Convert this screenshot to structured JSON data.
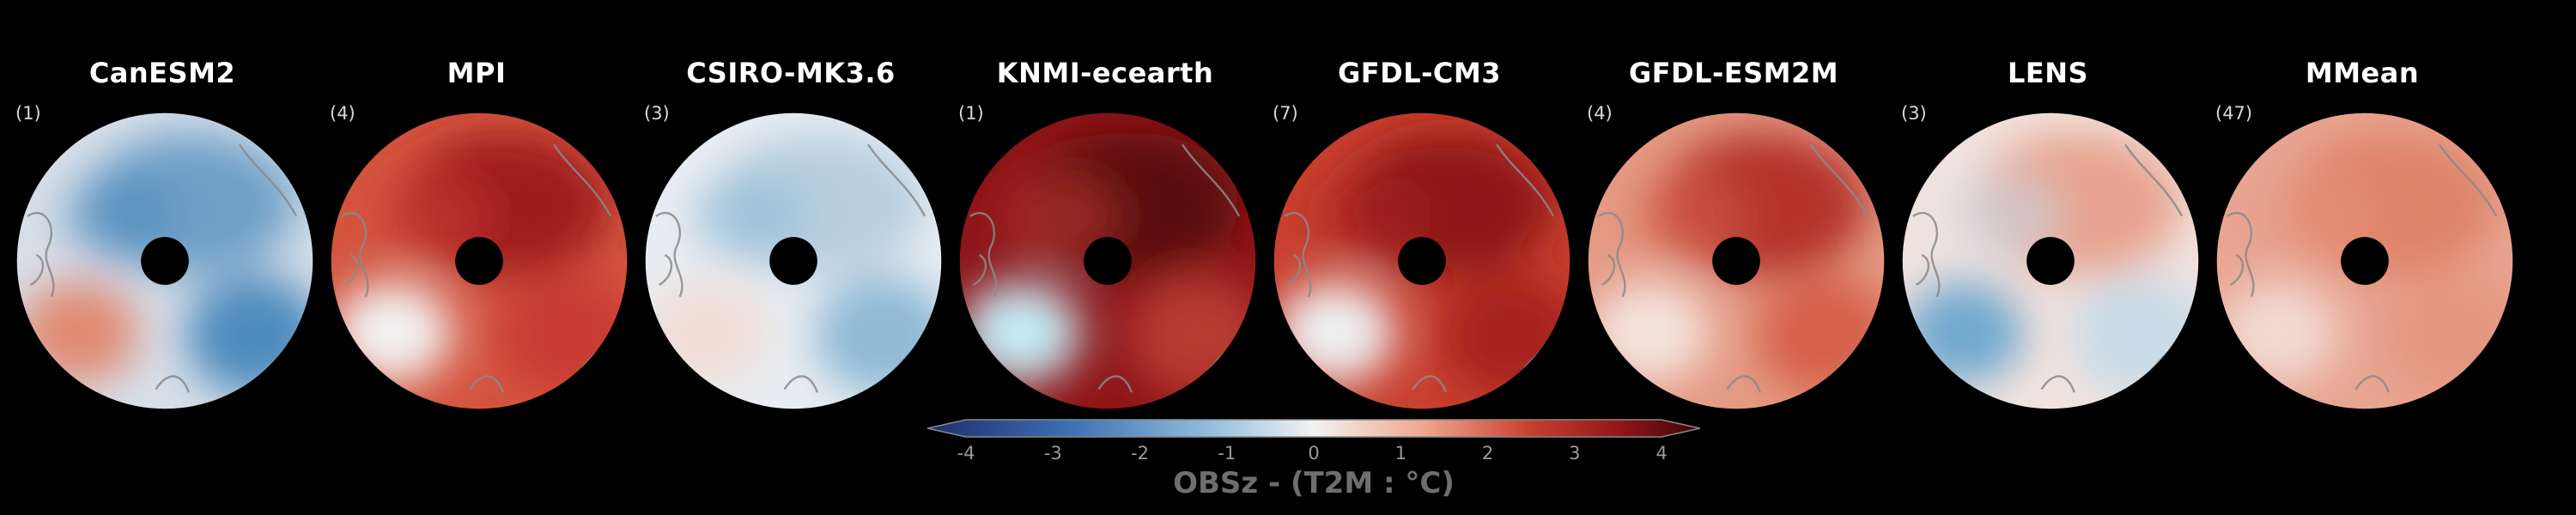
{
  "panels": [
    {
      "title": "CanESM2",
      "count": "(1)",
      "theme": {
        "bg": "#d7dfe8",
        "a": "#6fa0c8",
        "b": "#e08a72",
        "c": "#4d8bbd"
      }
    },
    {
      "title": "MPI",
      "count": "(4)",
      "theme": {
        "bg": "#d4553f",
        "a": "#9e1d1e",
        "b": "#f2f2f2",
        "c": "#c83a32"
      }
    },
    {
      "title": "CSIRO-MK3.6",
      "count": "(3)",
      "theme": {
        "bg": "#e9edf2",
        "a": "#b7cfe0",
        "b": "#f1dcd4",
        "c": "#8fb9d6"
      }
    },
    {
      "title": "KNMI-ecearth",
      "count": "(1)",
      "theme": {
        "bg": "#8e1518",
        "a": "#5a0b0f",
        "b": "#c4eaf4",
        "c": "#b83a30"
      }
    },
    {
      "title": "GFDL-CM3",
      "count": "(7)",
      "theme": {
        "bg": "#c8402f",
        "a": "#8e1518",
        "b": "#eef0f2",
        "c": "#a5201f"
      }
    },
    {
      "title": "GFDL-ESM2M",
      "count": "(4)",
      "theme": {
        "bg": "#e49a84",
        "a": "#b4312c",
        "b": "#f4e4de",
        "c": "#d66048"
      }
    },
    {
      "title": "LENS",
      "count": "(3)",
      "theme": {
        "bg": "#f1e3de",
        "a": "#e7a38e",
        "b": "#6fa8cf",
        "c": "#c8dbe8"
      }
    },
    {
      "title": "MMean",
      "count": "(47)",
      "theme": {
        "bg": "#e8a592",
        "a": "#de8268",
        "b": "#f2dad2",
        "c": "#e4957e"
      }
    }
  ],
  "colorbar": {
    "ticks": [
      "-4",
      "-3",
      "-2",
      "-1",
      "0",
      "1",
      "2",
      "3",
      "4"
    ],
    "label": "OBSz - (T2M : °C)",
    "colors": [
      "#1f2d6e",
      "#3b6eb0",
      "#8fbcdc",
      "#f2f2f2",
      "#f0a88e",
      "#c8402f",
      "#8e1518",
      "#3d0508"
    ]
  }
}
